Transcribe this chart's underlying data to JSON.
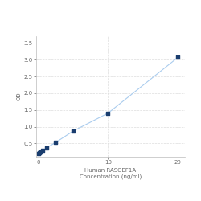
{
  "x": [
    0,
    0.156,
    0.313,
    0.625,
    1.25,
    2.5,
    5,
    10,
    20
  ],
  "y": [
    0.201,
    0.22,
    0.244,
    0.283,
    0.375,
    0.529,
    0.868,
    1.404,
    3.068
  ],
  "line_color": "#aaccee",
  "marker_color": "#1a3d6e",
  "marker_size": 3.5,
  "xlabel_line1": "Human RASGEF1A",
  "xlabel_line2": "Concentration (ng/ml)",
  "ylabel": "OD",
  "xlim": [
    -0.3,
    21
  ],
  "ylim": [
    0.1,
    3.7
  ],
  "xticks": [
    0,
    10,
    20
  ],
  "yticks": [
    0.5,
    1,
    1.5,
    2,
    2.5,
    3,
    3.5
  ],
  "grid_color": "#dddddd",
  "grid_style": "--",
  "axis_fontsize": 5,
  "tick_fontsize": 5
}
